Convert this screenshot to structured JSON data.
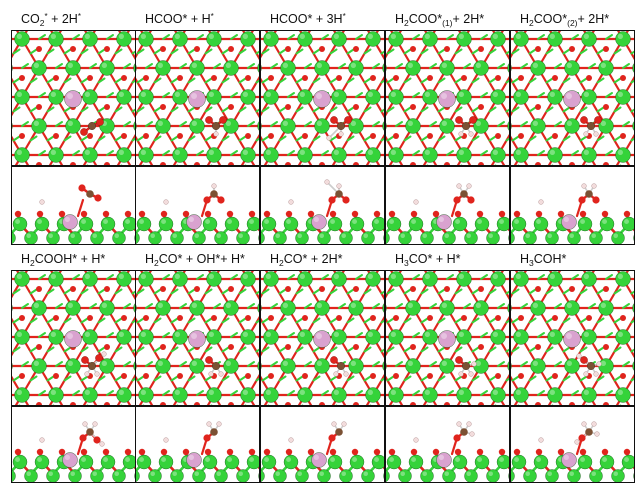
{
  "figure": {
    "row1": [
      {
        "parts": [
          [
            "t",
            "CO"
          ],
          [
            "sub",
            "2"
          ],
          [
            "sup",
            "*"
          ],
          [
            "t",
            " + 2H"
          ],
          [
            "sup",
            "*"
          ]
        ]
      },
      {
        "parts": [
          [
            "t",
            "HCOO* + H"
          ],
          [
            "sup",
            "*"
          ]
        ]
      },
      {
        "parts": [
          [
            "t",
            "HCOO* + 3H"
          ],
          [
            "sup",
            "*"
          ]
        ]
      },
      {
        "parts": [
          [
            "t",
            "H"
          ],
          [
            "sub",
            "2"
          ],
          [
            "t",
            "COO*"
          ],
          [
            "sub",
            "(1)"
          ],
          [
            "t",
            "+ 2H*"
          ]
        ]
      },
      {
        "parts": [
          [
            "t",
            "H"
          ],
          [
            "sub",
            "2"
          ],
          [
            "t",
            "COO*"
          ],
          [
            "sub",
            "(2)"
          ],
          [
            "t",
            "+ 2H*"
          ]
        ]
      }
    ],
    "row2": [
      {
        "parts": [
          [
            "t",
            "H"
          ],
          [
            "sub",
            "2"
          ],
          [
            "t",
            "COOH* + H*"
          ]
        ]
      },
      {
        "parts": [
          [
            "t",
            "H"
          ],
          [
            "sub",
            "2"
          ],
          [
            "t",
            "CO* + OH*+ H*"
          ]
        ]
      },
      {
        "parts": [
          [
            "t",
            "H"
          ],
          [
            "sub",
            "2"
          ],
          [
            "t",
            "CO* + 2H*"
          ]
        ]
      },
      {
        "parts": [
          [
            "t",
            "H"
          ],
          [
            "sub",
            "3"
          ],
          [
            "t",
            "CO* + H*"
          ]
        ]
      },
      {
        "parts": [
          [
            "t",
            "H"
          ],
          [
            "sub",
            "3"
          ],
          [
            "t",
            "COH*"
          ]
        ]
      }
    ]
  },
  "colors": {
    "zinc": "#35d33a",
    "oxygen": "#e0241d",
    "dopant": "#d9a2cf",
    "carbon": "#7b5134",
    "hydrogen": "#f2dcdc",
    "frame": "#111111"
  }
}
